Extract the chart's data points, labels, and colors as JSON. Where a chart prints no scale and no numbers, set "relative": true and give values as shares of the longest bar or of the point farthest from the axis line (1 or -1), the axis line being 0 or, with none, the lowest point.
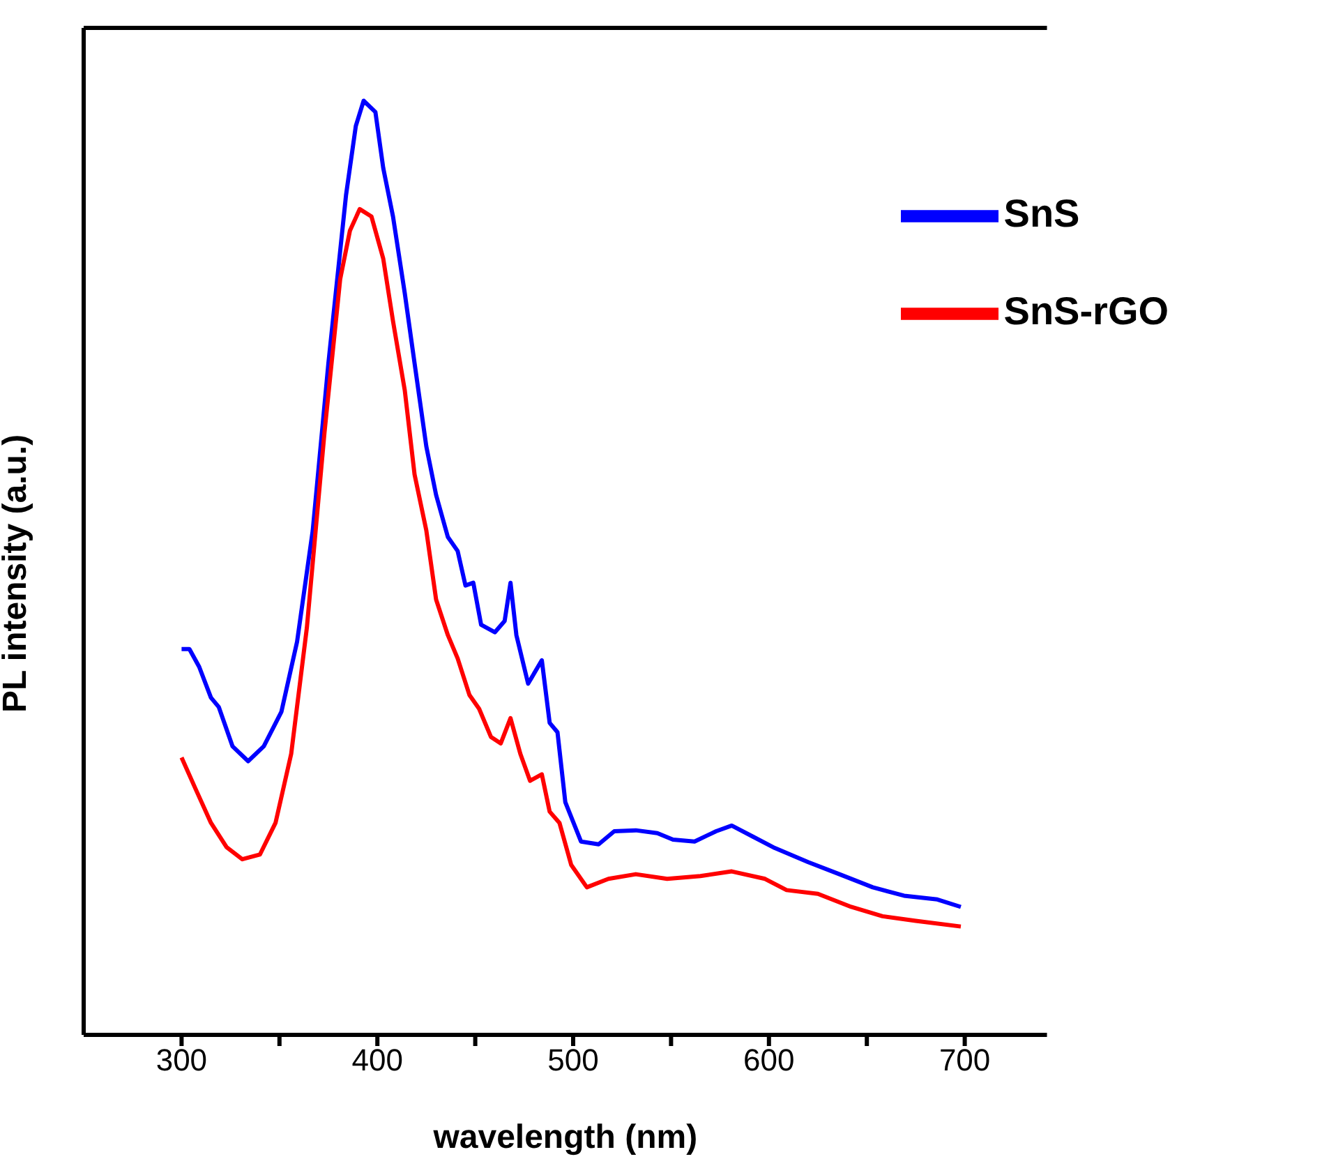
{
  "chart_data": {
    "type": "line",
    "xlabel": "wavelength (nm)",
    "ylabel": "PL intensity (a.u.)",
    "relative": true,
    "xlim": [
      250,
      742
    ],
    "xticks": [
      300,
      {
        "value": 350,
        "label": null
      },
      400,
      {
        "value": 450,
        "label": null
      },
      500,
      {
        "value": 550,
        "label": null
      },
      600,
      {
        "value": 650,
        "label": null
      },
      700
    ],
    "legend": "top right",
    "marker": "none",
    "line_style": "solid",
    "series": [
      {
        "name": "SnS",
        "color": "#0000ff",
        "x": [
          300,
          304,
          309,
          315,
          319,
          326,
          334,
          342,
          351,
          359,
          367,
          375,
          384,
          389,
          393,
          399,
          403,
          408,
          414,
          419,
          425,
          430,
          436,
          441,
          445,
          449,
          453,
          460,
          465,
          468,
          471,
          477,
          484,
          488,
          492,
          496,
          504,
          513,
          521,
          532,
          543,
          551,
          562,
          573,
          581,
          592,
          603,
          620,
          636,
          653,
          669,
          686,
          698
        ],
        "values": [
          0.413,
          0.413,
          0.394,
          0.361,
          0.351,
          0.309,
          0.293,
          0.309,
          0.346,
          0.421,
          0.54,
          0.719,
          0.899,
          0.973,
          1,
          0.988,
          0.928,
          0.876,
          0.794,
          0.719,
          0.63,
          0.578,
          0.533,
          0.518,
          0.481,
          0.484,
          0.439,
          0.431,
          0.443,
          0.484,
          0.428,
          0.376,
          0.401,
          0.334,
          0.324,
          0.249,
          0.207,
          0.204,
          0.218,
          0.219,
          0.216,
          0.209,
          0.207,
          0.218,
          0.224,
          0.212,
          0.2,
          0.185,
          0.172,
          0.158,
          0.149,
          0.145,
          0.137
        ]
      },
      {
        "name": "SnS-rGO",
        "color": "#ff0000",
        "x": [
          300,
          307,
          315,
          323,
          331,
          340,
          348,
          356,
          364,
          373,
          381,
          386,
          391,
          397,
          403,
          408,
          414,
          419,
          425,
          430,
          436,
          441,
          447,
          452,
          458,
          463,
          468,
          473,
          478,
          484,
          488,
          493,
          499,
          507,
          518,
          532,
          548,
          565,
          581,
          598,
          609,
          625,
          642,
          658,
          675,
          698
        ],
        "values": [
          0.297,
          0.264,
          0.227,
          0.201,
          0.188,
          0.193,
          0.227,
          0.301,
          0.436,
          0.645,
          0.809,
          0.861,
          0.884,
          0.876,
          0.831,
          0.764,
          0.69,
          0.6,
          0.54,
          0.466,
          0.428,
          0.403,
          0.364,
          0.349,
          0.319,
          0.312,
          0.339,
          0.301,
          0.272,
          0.279,
          0.239,
          0.227,
          0.182,
          0.158,
          0.167,
          0.172,
          0.167,
          0.17,
          0.175,
          0.167,
          0.155,
          0.151,
          0.137,
          0.127,
          0.122,
          0.116
        ]
      }
    ]
  }
}
